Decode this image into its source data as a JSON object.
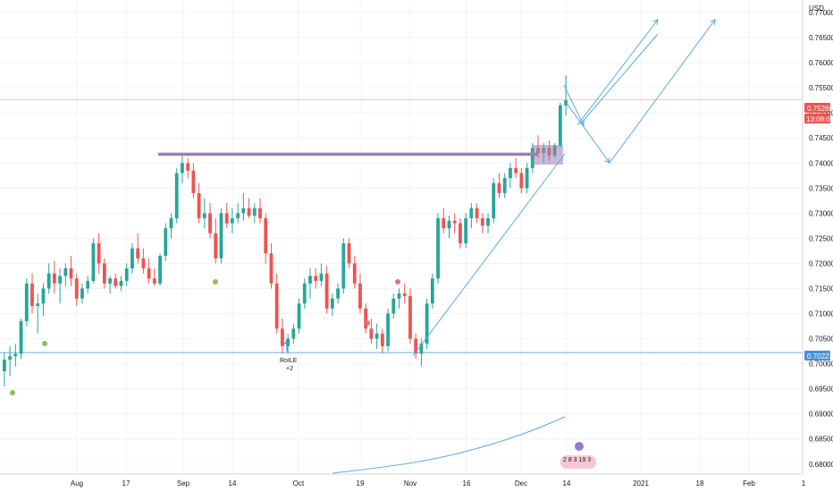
{
  "chart_data": {
    "type": "candlestick",
    "currency": "USD",
    "price_axis": {
      "min": 0.678,
      "max": 0.7725,
      "ticks": [
        "0.77000",
        "0.76500",
        "0.76000",
        "0.75500",
        "0.75000",
        "0.74500",
        "0.74000",
        "0.73500",
        "0.73000",
        "0.72500",
        "0.72000",
        "0.71500",
        "0.71000",
        "0.70500",
        "0.70000",
        "0.69500",
        "0.69000",
        "0.68500",
        "0.68000"
      ]
    },
    "time_axis": {
      "ticks": [
        "Aug",
        "17",
        "Sep",
        "14",
        "Oct",
        "19",
        "Nov",
        "16",
        "Dec",
        "14",
        "2021",
        "18",
        "Feb",
        "1"
      ]
    },
    "last_price": {
      "value": "0.75266",
      "countdown": "13:08:06",
      "color": "#ef5350"
    },
    "support_level": {
      "value": "0.70223",
      "color": "#4a90d9"
    },
    "resistance_level": 0.7418,
    "colors": {
      "up": "#26a69a",
      "down": "#ef5350",
      "resistance": "#9c7fb4",
      "drawing": "#5aa8e6"
    },
    "annotation": {
      "label": "RoILE",
      "sub": "+2"
    },
    "panel_counts": "2 8 3 19 3",
    "candles": [
      [
        0.6985,
        0.7022,
        0.6955,
        0.7008
      ],
      [
        0.7008,
        0.7035,
        0.6975,
        0.7015
      ],
      [
        0.7015,
        0.704,
        0.6995,
        0.702
      ],
      [
        0.702,
        0.709,
        0.701,
        0.7085
      ],
      [
        0.7085,
        0.717,
        0.7075,
        0.716
      ],
      [
        0.716,
        0.718,
        0.71,
        0.7115
      ],
      [
        0.7115,
        0.714,
        0.706,
        0.712
      ],
      [
        0.712,
        0.716,
        0.7095,
        0.715
      ],
      [
        0.715,
        0.72,
        0.714,
        0.718
      ],
      [
        0.718,
        0.7205,
        0.714,
        0.716
      ],
      [
        0.716,
        0.719,
        0.712,
        0.7175
      ],
      [
        0.7175,
        0.72,
        0.7155,
        0.719
      ],
      [
        0.719,
        0.7215,
        0.7155,
        0.717
      ],
      [
        0.717,
        0.718,
        0.7115,
        0.713
      ],
      [
        0.713,
        0.716,
        0.712,
        0.715
      ],
      [
        0.715,
        0.7175,
        0.714,
        0.7165
      ],
      [
        0.7165,
        0.725,
        0.716,
        0.724
      ],
      [
        0.724,
        0.726,
        0.718,
        0.72
      ],
      [
        0.72,
        0.721,
        0.715,
        0.716
      ],
      [
        0.716,
        0.7175,
        0.714,
        0.717
      ],
      [
        0.717,
        0.718,
        0.715,
        0.7155
      ],
      [
        0.7155,
        0.7175,
        0.7145,
        0.7165
      ],
      [
        0.7165,
        0.72,
        0.7155,
        0.719
      ],
      [
        0.719,
        0.724,
        0.718,
        0.723
      ],
      [
        0.723,
        0.726,
        0.72,
        0.721
      ],
      [
        0.721,
        0.723,
        0.718,
        0.719
      ],
      [
        0.719,
        0.721,
        0.716,
        0.717
      ],
      [
        0.717,
        0.719,
        0.7155,
        0.716
      ],
      [
        0.716,
        0.722,
        0.7155,
        0.7215
      ],
      [
        0.7215,
        0.728,
        0.7205,
        0.727
      ],
      [
        0.727,
        0.73,
        0.725,
        0.729
      ],
      [
        0.729,
        0.739,
        0.728,
        0.738
      ],
      [
        0.738,
        0.742,
        0.736,
        0.74
      ],
      [
        0.74,
        0.741,
        0.737,
        0.7385
      ],
      [
        0.7385,
        0.74,
        0.733,
        0.734
      ],
      [
        0.734,
        0.736,
        0.728,
        0.729
      ],
      [
        0.729,
        0.733,
        0.727,
        0.73
      ],
      [
        0.73,
        0.732,
        0.725,
        0.726
      ],
      [
        0.726,
        0.729,
        0.72,
        0.721
      ],
      [
        0.721,
        0.731,
        0.72,
        0.73
      ],
      [
        0.73,
        0.732,
        0.727,
        0.728
      ],
      [
        0.728,
        0.731,
        0.726,
        0.729
      ],
      [
        0.729,
        0.732,
        0.728,
        0.73
      ],
      [
        0.73,
        0.734,
        0.7285,
        0.731
      ],
      [
        0.731,
        0.733,
        0.729,
        0.7295
      ],
      [
        0.7295,
        0.732,
        0.728,
        0.731
      ],
      [
        0.731,
        0.733,
        0.728,
        0.729
      ],
      [
        0.729,
        0.73,
        0.72,
        0.722
      ],
      [
        0.722,
        0.724,
        0.715,
        0.716
      ],
      [
        0.716,
        0.718,
        0.706,
        0.707
      ],
      [
        0.707,
        0.709,
        0.702,
        0.7035
      ],
      [
        0.7035,
        0.706,
        0.702,
        0.705
      ],
      [
        0.705,
        0.708,
        0.704,
        0.707
      ],
      [
        0.707,
        0.713,
        0.706,
        0.712
      ],
      [
        0.712,
        0.717,
        0.711,
        0.716
      ],
      [
        0.716,
        0.719,
        0.713,
        0.7175
      ],
      [
        0.7175,
        0.719,
        0.715,
        0.7165
      ],
      [
        0.7165,
        0.72,
        0.7155,
        0.718
      ],
      [
        0.718,
        0.7195,
        0.71,
        0.711
      ],
      [
        0.711,
        0.714,
        0.7095,
        0.713
      ],
      [
        0.713,
        0.716,
        0.712,
        0.715
      ],
      [
        0.715,
        0.725,
        0.714,
        0.724
      ],
      [
        0.724,
        0.725,
        0.719,
        0.72
      ],
      [
        0.72,
        0.7215,
        0.715,
        0.716
      ],
      [
        0.716,
        0.718,
        0.71,
        0.711
      ],
      [
        0.711,
        0.712,
        0.706,
        0.707
      ],
      [
        0.707,
        0.709,
        0.704,
        0.705
      ],
      [
        0.705,
        0.708,
        0.703,
        0.706
      ],
      [
        0.706,
        0.707,
        0.702,
        0.7035
      ],
      [
        0.7035,
        0.711,
        0.7025,
        0.71
      ],
      [
        0.71,
        0.714,
        0.709,
        0.713
      ],
      [
        0.713,
        0.715,
        0.711,
        0.714
      ],
      [
        0.714,
        0.716,
        0.712,
        0.7135
      ],
      [
        0.7135,
        0.715,
        0.704,
        0.705
      ],
      [
        0.705,
        0.706,
        0.701,
        0.702
      ],
      [
        0.702,
        0.705,
        0.6995,
        0.704
      ],
      [
        0.704,
        0.713,
        0.703,
        0.712
      ],
      [
        0.712,
        0.718,
        0.711,
        0.717
      ],
      [
        0.717,
        0.73,
        0.716,
        0.729
      ],
      [
        0.729,
        0.731,
        0.726,
        0.727
      ],
      [
        0.727,
        0.7295,
        0.725,
        0.7285
      ],
      [
        0.7285,
        0.73,
        0.726,
        0.728
      ],
      [
        0.728,
        0.729,
        0.723,
        0.724
      ],
      [
        0.724,
        0.73,
        0.723,
        0.729
      ],
      [
        0.729,
        0.732,
        0.727,
        0.731
      ],
      [
        0.731,
        0.732,
        0.728,
        0.729
      ],
      [
        0.729,
        0.73,
        0.726,
        0.7275
      ],
      [
        0.7275,
        0.73,
        0.726,
        0.729
      ],
      [
        0.729,
        0.737,
        0.728,
        0.736
      ],
      [
        0.736,
        0.738,
        0.733,
        0.734
      ],
      [
        0.734,
        0.738,
        0.733,
        0.737
      ],
      [
        0.737,
        0.74,
        0.735,
        0.739
      ],
      [
        0.739,
        0.741,
        0.737,
        0.738
      ],
      [
        0.738,
        0.739,
        0.734,
        0.735
      ],
      [
        0.735,
        0.74,
        0.734,
        0.739
      ],
      [
        0.739,
        0.744,
        0.738,
        0.743
      ],
      [
        0.743,
        0.7455,
        0.741,
        0.742
      ],
      [
        0.742,
        0.744,
        0.74,
        0.743
      ],
      [
        0.743,
        0.7445,
        0.7405,
        0.7415
      ],
      [
        0.7415,
        0.744,
        0.741,
        0.7435
      ],
      [
        0.7435,
        0.752,
        0.743,
        0.7515
      ],
      [
        0.7515,
        0.7575,
        0.7495,
        0.7525
      ]
    ]
  }
}
